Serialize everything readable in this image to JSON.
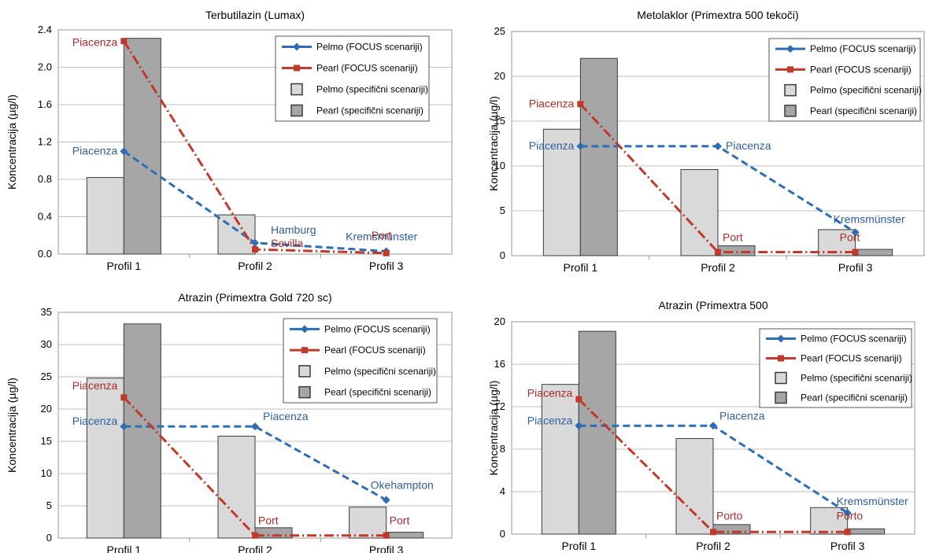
{
  "legend_labels": {
    "pelmo_focus": "Pelmo (FOCUS scenariji)",
    "pearl_focus": "Pearl (FOCUS scenariji)",
    "pelmo_specific": "Pelmo (specifični scenariji)",
    "pearl_specific": "Pearl (specifični scenariji)"
  },
  "colors": {
    "pelmo_line": "#2e6db4",
    "pearl_line": "#c0392b",
    "pelmo_bar": "#d9d9d9",
    "pearl_bar": "#a6a6a6",
    "pelmo_text": "#2e5f9e",
    "pearl_text": "#a82a2a"
  },
  "chart_data": [
    {
      "type": "bar",
      "title": "Terbutilazin (Lumax)",
      "ylabel": "Koncentracija (µg/l)",
      "categories": [
        "Profil 1",
        "Profil 2",
        "Profil 3"
      ],
      "ylim": [
        0,
        2.4
      ],
      "yticks": [
        "0.0",
        "0.4",
        "0.8",
        "1.2",
        "1.6",
        "2.0",
        "2.4"
      ],
      "legend_position": "top-right",
      "series": [
        {
          "name": "Pelmo (specifični scenariji)",
          "type": "bar",
          "values": [
            0.82,
            0.42,
            0
          ]
        },
        {
          "name": "Pearl (specifični scenariji)",
          "type": "bar",
          "values": [
            2.31,
            0,
            0
          ]
        },
        {
          "name": "Pelmo (FOCUS scenariji)",
          "type": "line",
          "values": [
            1.1,
            0.12,
            0.03
          ],
          "point_labels": [
            "Piacenza",
            "Hamburg",
            "Kremsmünster"
          ]
        },
        {
          "name": "Pearl (FOCUS scenariji)",
          "type": "line",
          "values": [
            2.28,
            0.05,
            0.01
          ],
          "point_labels": [
            "Piacenza",
            "Sevilla",
            "Port"
          ]
        }
      ]
    },
    {
      "type": "bar",
      "title": "Metolaklor (Primextra 500 tekoči)",
      "ylabel": "Koncentracija (µg/l)",
      "categories": [
        "Profil 1",
        "Profil 2",
        "Profil 3"
      ],
      "ylim": [
        0,
        25
      ],
      "yticks": [
        "0",
        "5",
        "10",
        "15",
        "20",
        "25"
      ],
      "legend_position": "top-right",
      "series": [
        {
          "name": "Pelmo (specifični scenariji)",
          "type": "bar",
          "values": [
            14.1,
            9.6,
            2.9
          ]
        },
        {
          "name": "Pearl (specifični scenariji)",
          "type": "bar",
          "values": [
            22.0,
            1.1,
            0.7
          ]
        },
        {
          "name": "Pelmo (FOCUS scenariji)",
          "type": "line",
          "values": [
            12.2,
            12.2,
            2.6
          ],
          "point_labels": [
            "Piacenza",
            "Piacenza",
            "Kremsmünster"
          ]
        },
        {
          "name": "Pearl (FOCUS scenariji)",
          "type": "line",
          "values": [
            16.9,
            0.4,
            0.4
          ],
          "point_labels": [
            "Piacenza",
            "Port",
            "Port"
          ]
        }
      ]
    },
    {
      "type": "bar",
      "title": "Atrazin (Primextra Gold 720 sc)",
      "ylabel": "Koncentracija (µg/l)",
      "categories": [
        "Profil 1",
        "Profil 2",
        "Profil 3"
      ],
      "ylim": [
        0,
        35
      ],
      "yticks": [
        "0",
        "5",
        "10",
        "15",
        "20",
        "25",
        "30",
        "35"
      ],
      "legend_position": "top-right",
      "series": [
        {
          "name": "Pelmo (specifični scenariji)",
          "type": "bar",
          "values": [
            24.8,
            15.8,
            4.8
          ]
        },
        {
          "name": "Pearl (specifični scenariji)",
          "type": "bar",
          "values": [
            33.2,
            1.6,
            0.9
          ]
        },
        {
          "name": "Pelmo (FOCUS scenariji)",
          "type": "line",
          "values": [
            17.3,
            17.3,
            5.9
          ],
          "point_labels": [
            "Piacenza",
            "Piacenza",
            "Okehampton"
          ]
        },
        {
          "name": "Pearl (FOCUS scenariji)",
          "type": "line",
          "values": [
            21.8,
            0.4,
            0.4
          ],
          "point_labels": [
            "Piacenza",
            "Port",
            "Port"
          ]
        }
      ]
    },
    {
      "type": "bar",
      "title": "Atrazin (Primextra 500",
      "ylabel": "Koncentracija (µg/l)",
      "categories": [
        "Profil 1",
        "Profil 2",
        "Profil 3"
      ],
      "ylim": [
        0,
        20
      ],
      "yticks": [
        "0",
        "4",
        "8",
        "12",
        "16",
        "20"
      ],
      "legend_position": "top-right",
      "series": [
        {
          "name": "Pelmo (specifični scenariji)",
          "type": "bar",
          "values": [
            14.1,
            9.0,
            2.5
          ]
        },
        {
          "name": "Pearl (specifični scenariji)",
          "type": "bar",
          "values": [
            19.1,
            0.9,
            0.5
          ]
        },
        {
          "name": "Pelmo (FOCUS scenariji)",
          "type": "line",
          "values": [
            10.2,
            10.2,
            2.0
          ],
          "point_labels": [
            "Piacenza",
            "Piacenza",
            "Kremsmünster"
          ]
        },
        {
          "name": "Pearl (FOCUS scenariji)",
          "type": "line",
          "values": [
            12.7,
            0.2,
            0.2
          ],
          "point_labels": [
            "Piacenza",
            "Porto",
            "Porto"
          ]
        }
      ]
    }
  ]
}
